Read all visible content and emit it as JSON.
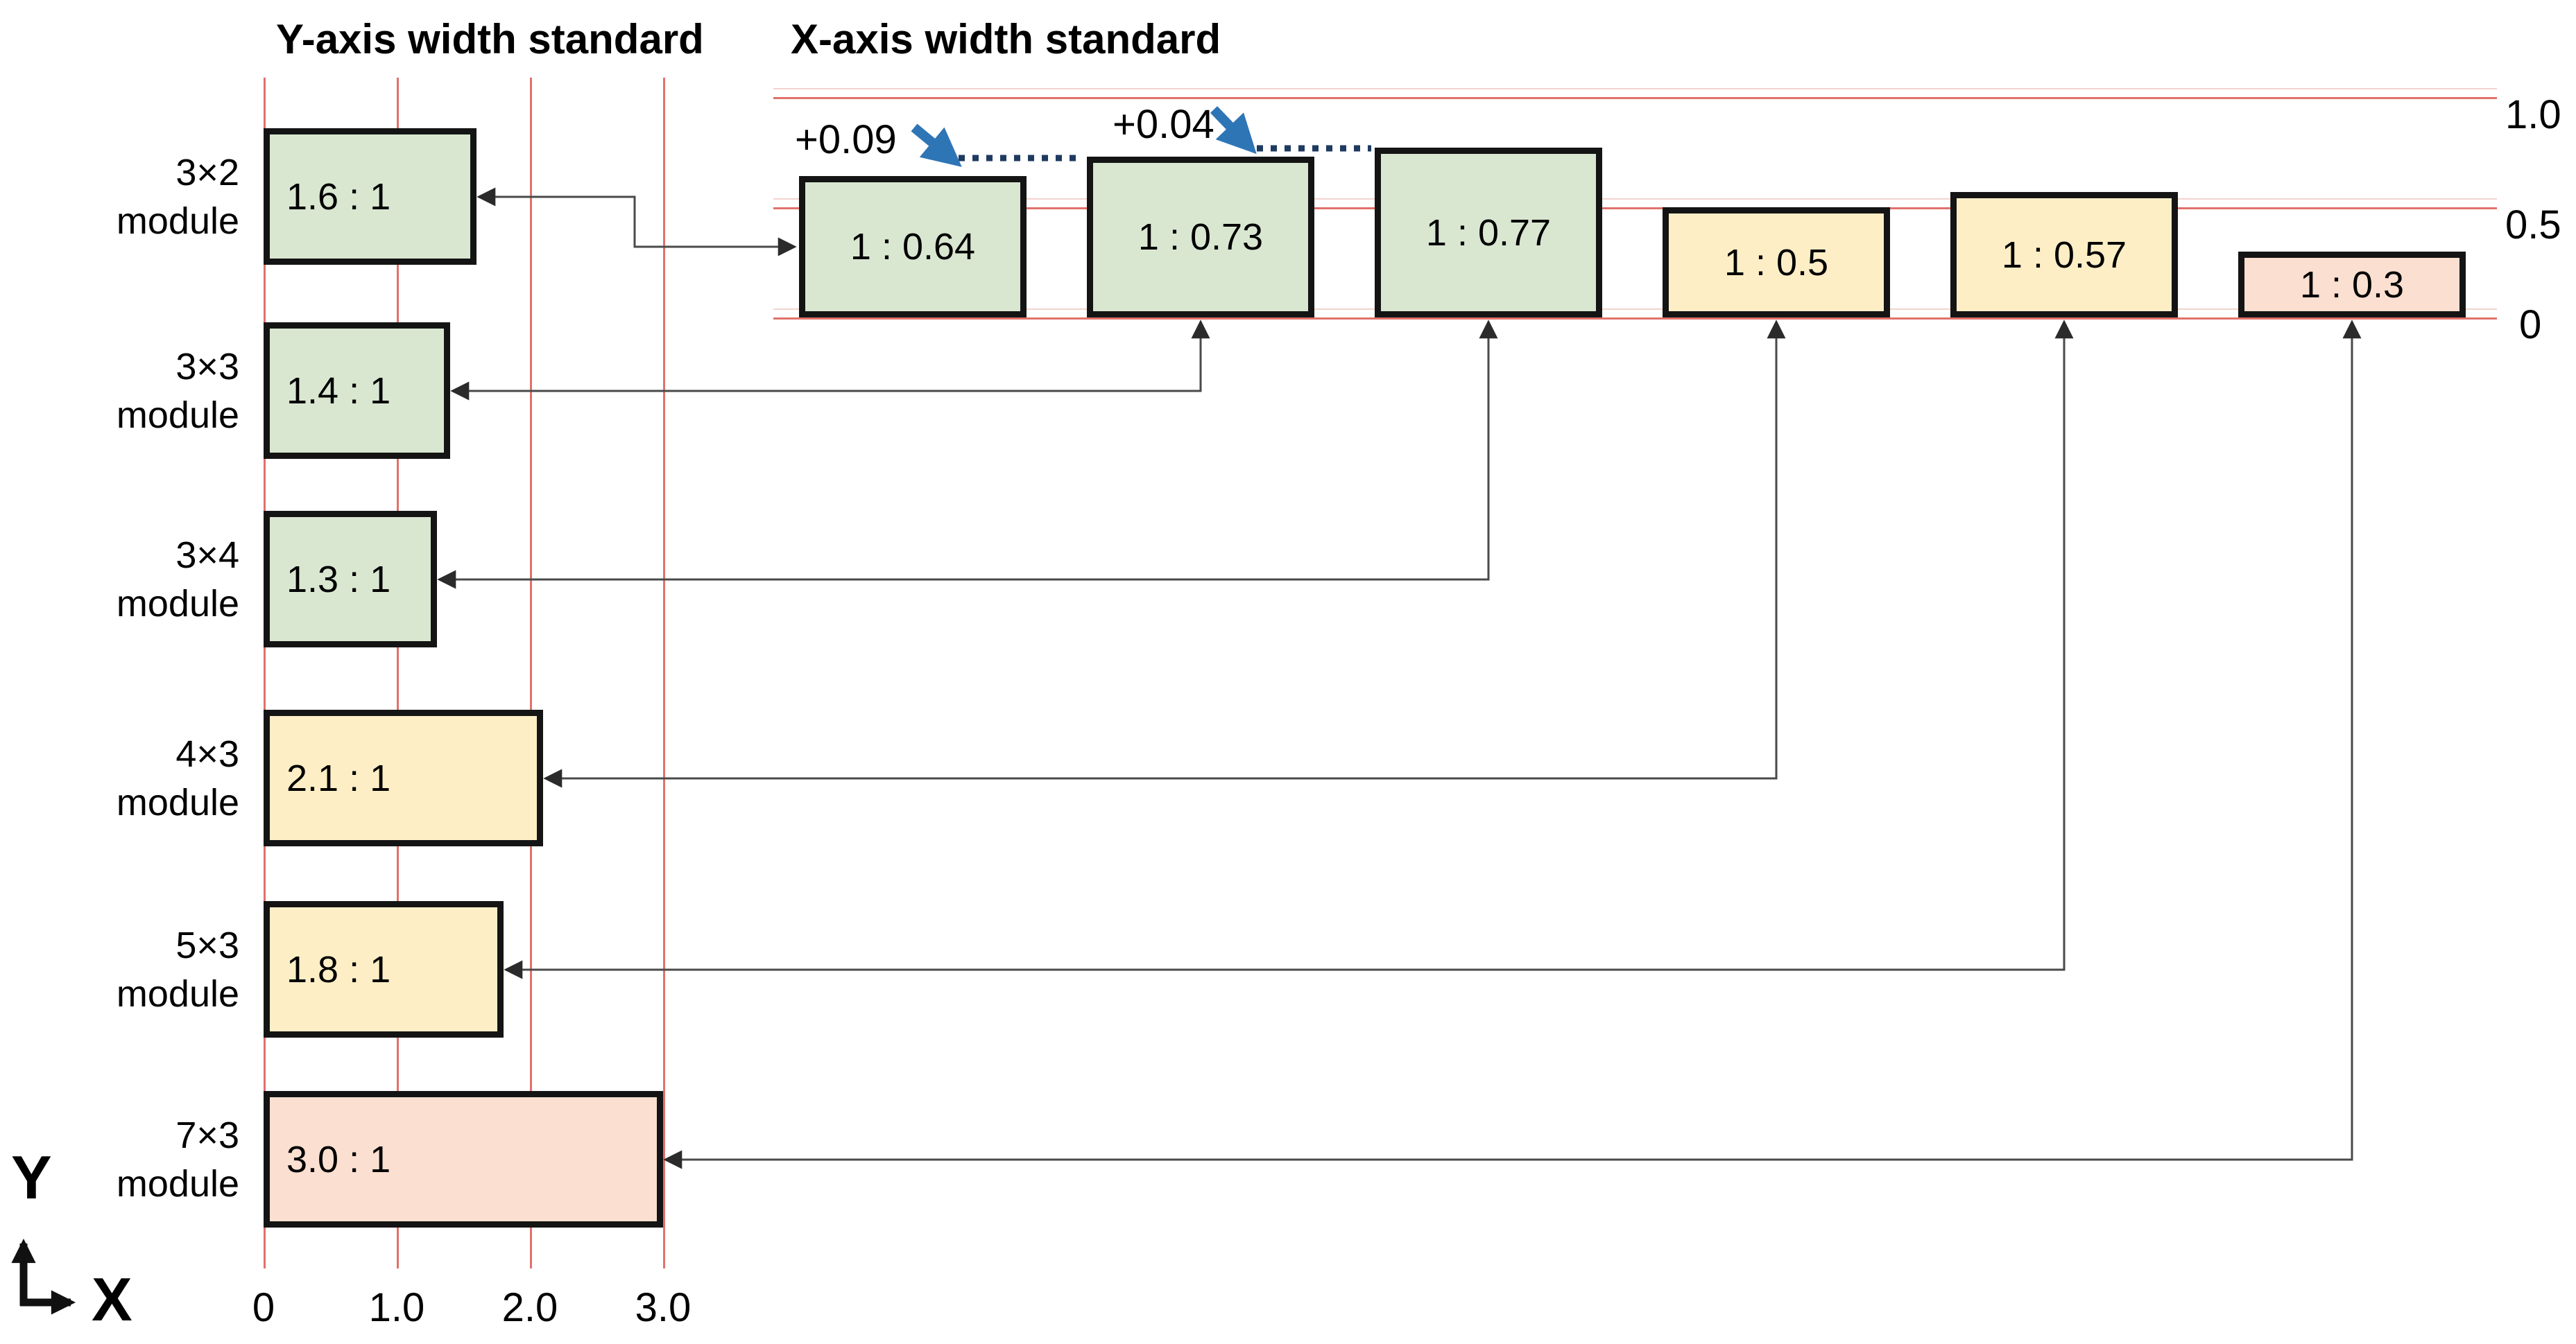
{
  "left_chart": {
    "title": "Y-axis width standard",
    "x_ticks": [
      "0",
      "1.0",
      "2.0",
      "3.0"
    ],
    "modules": [
      {
        "name": "3×2",
        "name2": "module",
        "ratio_label": "1.6 : 1",
        "width_ratio": 1.6,
        "color": "green"
      },
      {
        "name": "3×3",
        "name2": "module",
        "ratio_label": "1.4 : 1",
        "width_ratio": 1.4,
        "color": "green"
      },
      {
        "name": "3×4",
        "name2": "module",
        "ratio_label": "1.3 : 1",
        "width_ratio": 1.3,
        "color": "green"
      },
      {
        "name": "4×3",
        "name2": "module",
        "ratio_label": "2.1 : 1",
        "width_ratio": 2.1,
        "color": "yellow"
      },
      {
        "name": "5×3",
        "name2": "module",
        "ratio_label": "1.8 : 1",
        "width_ratio": 1.8,
        "color": "yellow"
      },
      {
        "name": "7×3",
        "name2": "module",
        "ratio_label": "3.0 : 1",
        "width_ratio": 3.0,
        "color": "pink"
      }
    ]
  },
  "right_chart": {
    "title": "X-axis width standard",
    "y_ticks": [
      "1.0",
      "0.5",
      "0"
    ],
    "bars": [
      {
        "ratio_label": "1 : 0.64",
        "height_ratio": 0.64,
        "color": "green"
      },
      {
        "ratio_label": "1 : 0.73",
        "height_ratio": 0.73,
        "color": "green"
      },
      {
        "ratio_label": "1 : 0.77",
        "height_ratio": 0.77,
        "color": "green"
      },
      {
        "ratio_label": "1 : 0.5",
        "height_ratio": 0.5,
        "color": "yellow"
      },
      {
        "ratio_label": "1 : 0.57",
        "height_ratio": 0.57,
        "color": "yellow"
      },
      {
        "ratio_label": "1 : 0.3",
        "height_ratio": 0.3,
        "color": "pink"
      }
    ],
    "annotations": [
      {
        "text": "+0.09"
      },
      {
        "text": "+0.04"
      }
    ]
  },
  "axis_indicator": {
    "vertical": "Y",
    "horizontal": "X"
  },
  "colors": {
    "green_fill": "#d9e7d1",
    "yellow_fill": "#fdeec6",
    "pink_fill": "#fbdfd0",
    "box_border": "#141414",
    "gridline": "#e0716b",
    "gridline_faint": "#f3d3cf",
    "connector": "#4a4a4a",
    "annotation_blue": "#2e75b6",
    "dotted_line": "#1f3a60",
    "text": "#000000"
  },
  "chart_data": [
    {
      "type": "bar",
      "orientation": "horizontal",
      "title": "Y-axis width standard",
      "categories": [
        "3×2 module",
        "3×3 module",
        "3×4 module",
        "4×3 module",
        "5×3 module",
        "7×3 module"
      ],
      "values": [
        1.6,
        1.4,
        1.3,
        2.1,
        1.8,
        3.0
      ],
      "bar_labels": [
        "1.6 : 1",
        "1.4 : 1",
        "1.3 : 1",
        "2.1 : 1",
        "1.8 : 1",
        "3.0 : 1"
      ],
      "bar_colors": [
        "#d9e7d1",
        "#d9e7d1",
        "#d9e7d1",
        "#fdeec6",
        "#fdeec6",
        "#fbdfd0"
      ],
      "x_ticks": [
        0,
        1.0,
        2.0,
        3.0
      ],
      "xlim": [
        0,
        3.35
      ],
      "grid": "vertical red gridlines at ticks",
      "axis_arrows": [
        "Y up",
        "X right"
      ]
    },
    {
      "type": "bar",
      "orientation": "vertical",
      "title": "X-axis width standard",
      "categories": [
        "3×2 module",
        "3×3 module",
        "3×4 module",
        "4×3 module",
        "5×3 module",
        "7×3 module"
      ],
      "values": [
        0.64,
        0.73,
        0.77,
        0.5,
        0.57,
        0.3
      ],
      "bar_labels": [
        "1 : 0.64",
        "1 : 0.73",
        "1 : 0.77",
        "1 : 0.5",
        "1 : 0.57",
        "1 : 0.3"
      ],
      "bar_colors": [
        "#d9e7d1",
        "#d9e7d1",
        "#d9e7d1",
        "#fdeec6",
        "#fdeec6",
        "#fbdfd0"
      ],
      "y_ticks": [
        1.0,
        0.5,
        0
      ],
      "ylim": [
        0,
        1.05
      ],
      "grid": "horizontal red gridlines at ticks",
      "legend": "none",
      "annotations": [
        {
          "text": "+0.09",
          "between": [
            "1 : 0.64",
            "1 : 0.73"
          ]
        },
        {
          "text": "+0.04",
          "between": [
            "1 : 0.73",
            "1 : 0.77"
          ]
        }
      ],
      "note": "each bar is linked by a double-headed arrow to the matching module bar of the left chart"
    }
  ]
}
